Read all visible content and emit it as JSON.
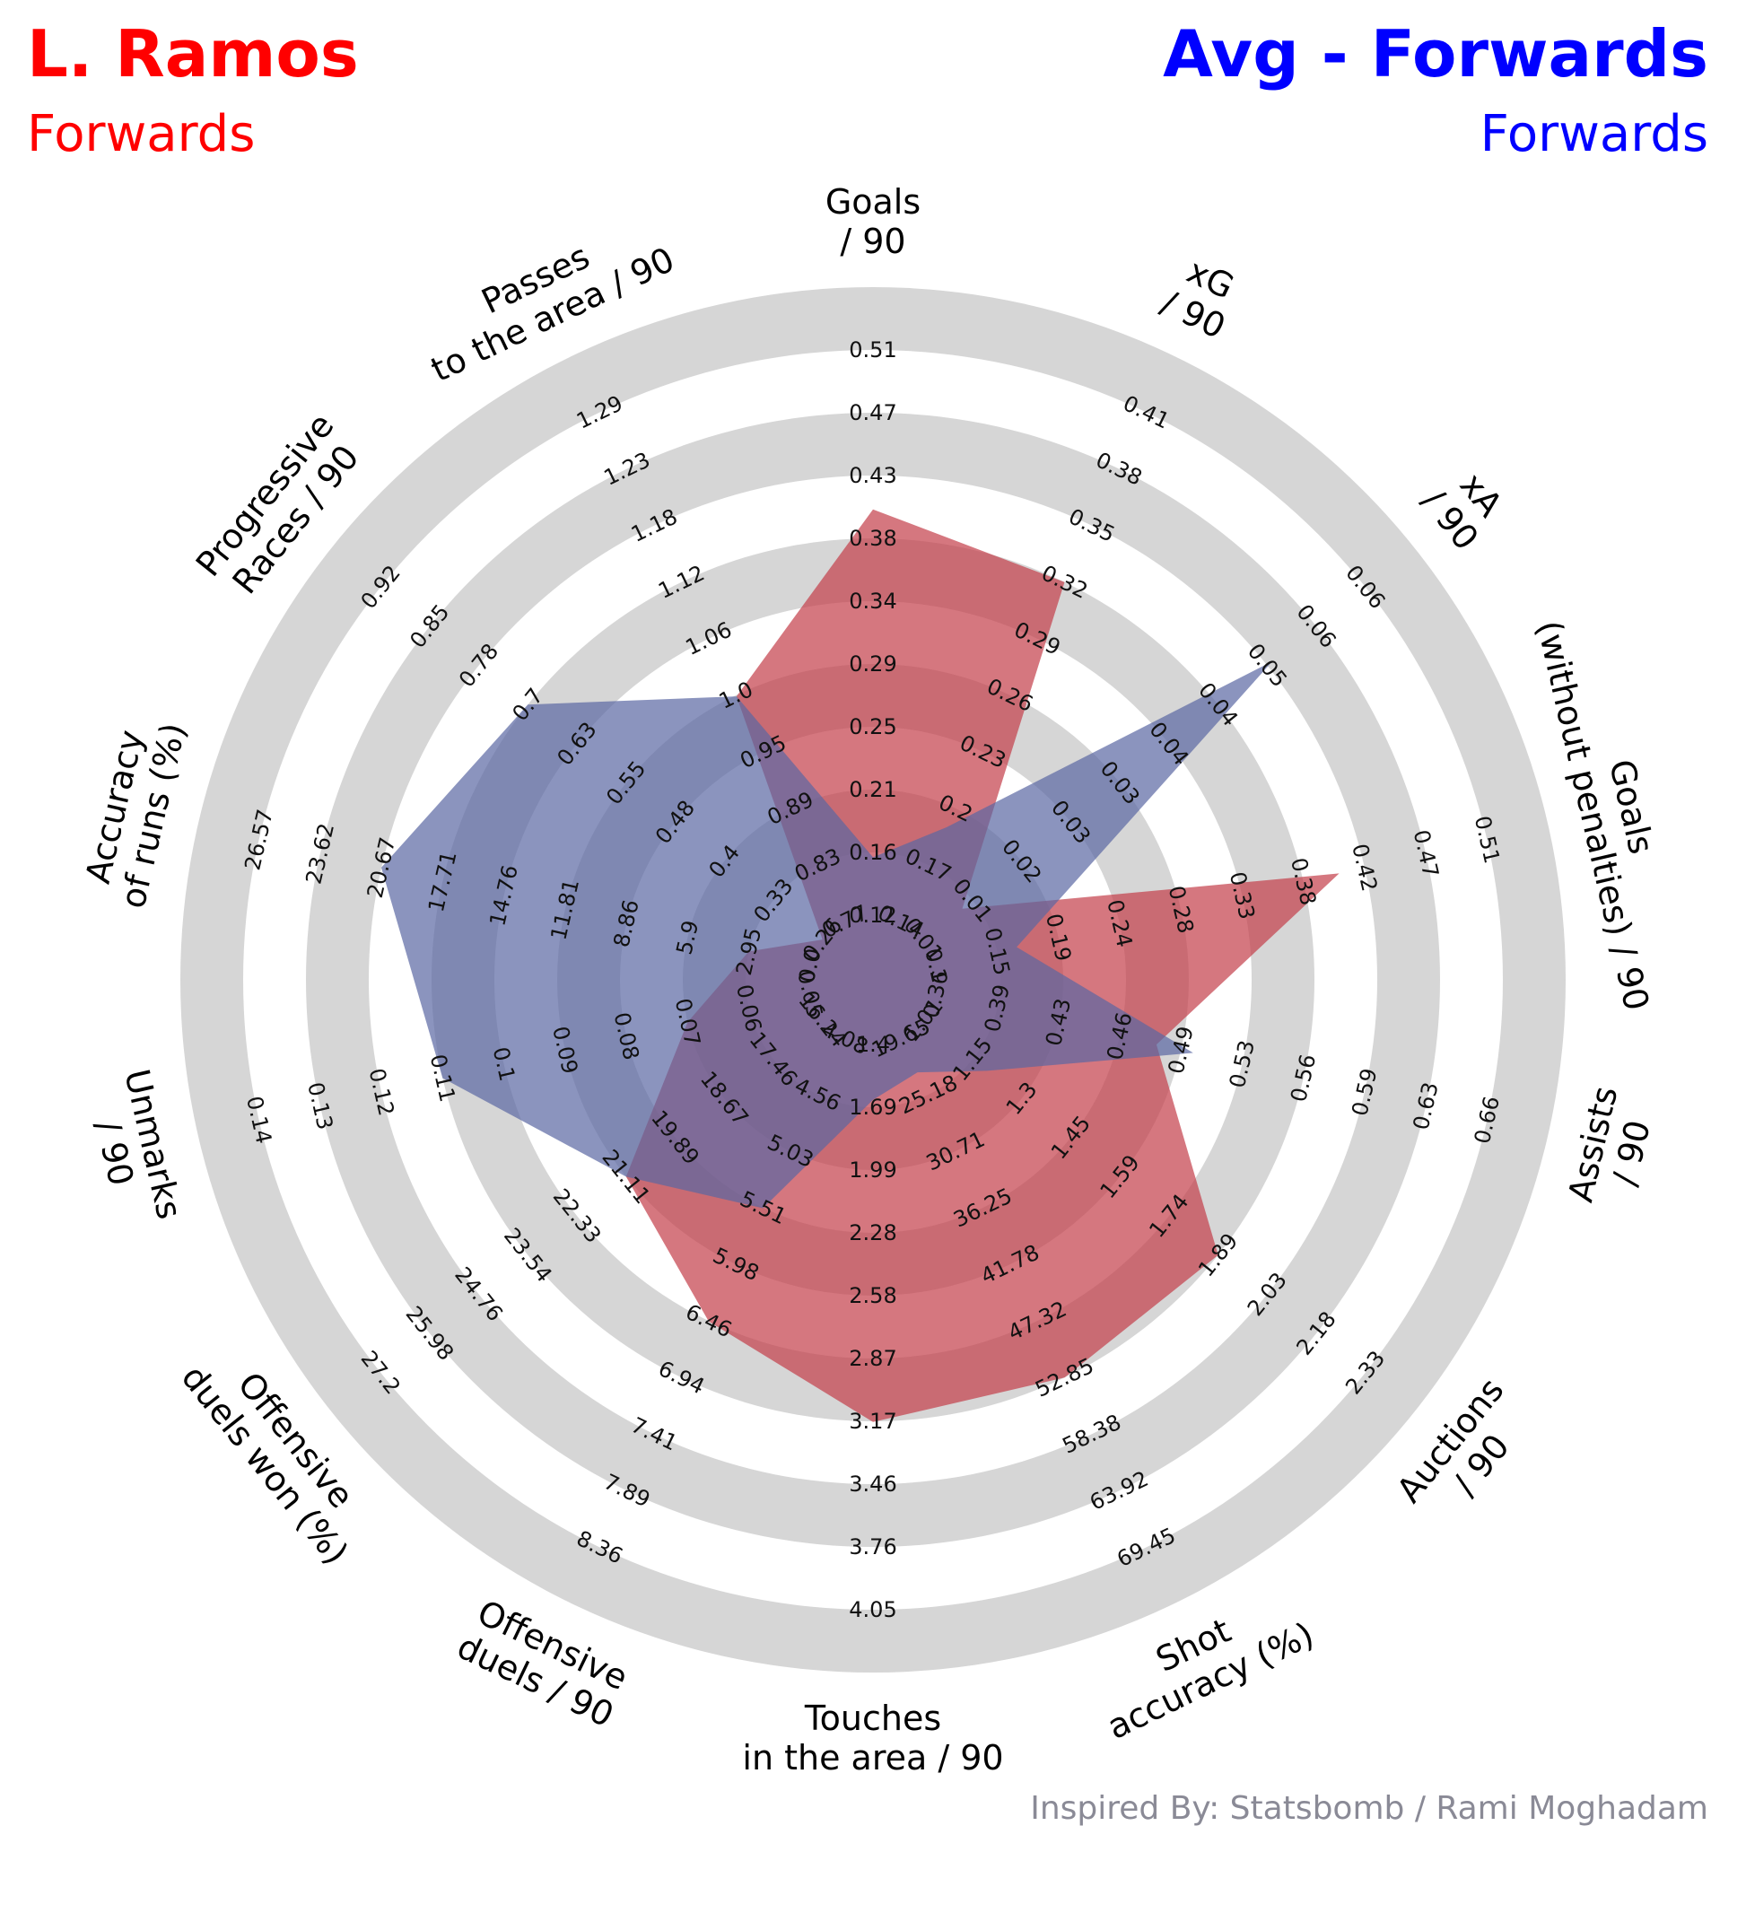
{
  "header": {
    "player_name": "L. Ramos",
    "player_position": "Forwards",
    "comparison_name": "Avg - Forwards",
    "comparison_position": "Forwards",
    "player_color": "#ff0000",
    "comparison_color": "#0000ff"
  },
  "footer": {
    "credit": "Inspired By: Statsbomb / Rami Moghadam",
    "credit_color": "#8a8a96"
  },
  "chart_data": {
    "type": "radar",
    "ring_colors": [
      "#d6d6d6",
      "#ffffff"
    ],
    "series": [
      {
        "name": "L. Ramos",
        "color": "#c33d49",
        "values": [
          0.4,
          0.32,
          0.01,
          0.4,
          0.48,
          1.89,
          52.85,
          3.17,
          6.46,
          21.11,
          0.07,
          2.95,
          0.26,
          1.0
        ]
      },
      {
        "name": "Avg - Forwards",
        "color": "#5a67a3",
        "values": [
          0.16,
          0.19,
          0.05,
          0.16,
          0.5,
          1.2,
          23.0,
          1.66,
          5.51,
          21.11,
          0.11,
          20.67,
          0.7,
          1.0
        ]
      }
    ],
    "axes": [
      {
        "label": [
          "Goals",
          "/ 90"
        ],
        "ticks": [
          "0.12",
          "0.16",
          "0.21",
          "0.25",
          "0.29",
          "0.34",
          "0.38",
          "0.43",
          "0.47",
          "0.51"
        ],
        "min": 0.12,
        "max": 0.51
      },
      {
        "label": [
          "xG",
          "/ 90"
        ],
        "ticks": [
          "0.14",
          "0.17",
          "0.2",
          "0.23",
          "0.26",
          "0.29",
          "0.32",
          "0.35",
          "0.38",
          "0.41"
        ],
        "min": 0.14,
        "max": 0.41
      },
      {
        "label": [
          "xA",
          "/ 90"
        ],
        "ticks": [
          "0.01",
          "0.01",
          "0.02",
          "0.03",
          "0.03",
          "0.04",
          "0.04",
          "0.05",
          "0.06",
          "0.06"
        ],
        "min": 0.005,
        "max": 0.062
      },
      {
        "label": [
          "Goals",
          "(without penalties) / 90"
        ],
        "ticks": [
          "0.1",
          "0.15",
          "0.19",
          "0.24",
          "0.28",
          "0.33",
          "0.38",
          "0.42",
          "0.47",
          "0.51"
        ],
        "min": 0.1,
        "max": 0.51
      },
      {
        "label": [
          "Assists",
          "/ 90"
        ],
        "ticks": [
          "0.36",
          "0.39",
          "0.43",
          "0.46",
          "0.49",
          "0.53",
          "0.56",
          "0.59",
          "0.63",
          "0.66"
        ],
        "min": 0.36,
        "max": 0.66
      },
      {
        "label": [
          "Auctions",
          "/ 90"
        ],
        "ticks": [
          "1.01",
          "1.15",
          "1.3",
          "1.45",
          "1.59",
          "1.74",
          "1.89",
          "2.03",
          "2.18",
          "2.33"
        ],
        "min": 1.01,
        "max": 2.33
      },
      {
        "label": [
          "Shot",
          "accuracy (%)"
        ],
        "ticks": [
          "19.65",
          "25.18",
          "30.71",
          "36.25",
          "41.78",
          "47.32",
          "52.85",
          "58.38",
          "63.92",
          "69.45"
        ],
        "min": 19.65,
        "max": 69.45
      },
      {
        "label": [
          "Touches",
          "in the area / 90"
        ],
        "ticks": [
          "1.4",
          "1.69",
          "1.99",
          "2.28",
          "2.58",
          "2.87",
          "3.17",
          "3.46",
          "3.76",
          "4.05"
        ],
        "min": 1.4,
        "max": 4.05
      },
      {
        "label": [
          "Offensive",
          "duels / 90"
        ],
        "ticks": [
          "4.08",
          "4.56",
          "5.03",
          "5.51",
          "5.98",
          "6.46",
          "6.94",
          "7.41",
          "7.89",
          "8.36"
        ],
        "min": 4.08,
        "max": 8.36
      },
      {
        "label": [
          "Offensive",
          "duels won (%)"
        ],
        "ticks": [
          "16.24",
          "17.46",
          "18.67",
          "19.89",
          "21.11",
          "22.33",
          "23.54",
          "24.76",
          "25.98",
          "27.2"
        ],
        "min": 16.24,
        "max": 27.2
      },
      {
        "label": [
          "Unmarks",
          "/ 90"
        ],
        "ticks": [
          "0.05",
          "0.06",
          "0.07",
          "0.08",
          "0.09",
          "0.1",
          "0.11",
          "0.12",
          "0.13",
          "0.14"
        ],
        "min": 0.05,
        "max": 0.14
      },
      {
        "label": [
          "Accuracy",
          "of runs (%)"
        ],
        "ticks": [
          "0.0",
          "2.95",
          "5.9",
          "8.86",
          "11.81",
          "14.76",
          "17.71",
          "20.67",
          "23.62",
          "26.57"
        ],
        "min": 0.0,
        "max": 26.57
      },
      {
        "label": [
          "Progressive",
          "Races / 90"
        ],
        "ticks": [
          "0.26",
          "0.33",
          "0.4",
          "0.48",
          "0.55",
          "0.63",
          "0.7",
          "0.78",
          "0.85",
          "0.92"
        ],
        "min": 0.26,
        "max": 0.92
      },
      {
        "label": [
          "Passes",
          "to the area / 90"
        ],
        "ticks": [
          "0.77",
          "0.83",
          "0.89",
          "0.95",
          "1.0",
          "1.06",
          "1.12",
          "1.18",
          "1.23",
          "1.29"
        ],
        "min": 0.77,
        "max": 1.29
      }
    ]
  }
}
